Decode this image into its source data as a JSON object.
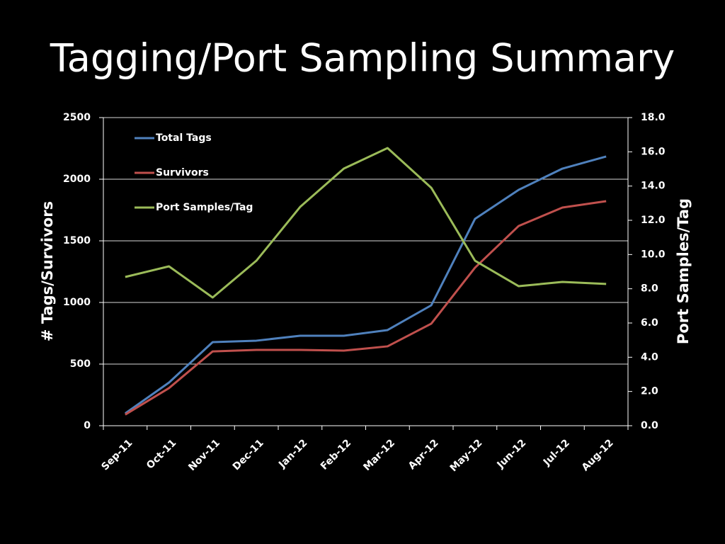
{
  "chart_data": {
    "type": "line",
    "title": "Tagging/Port Sampling Summary",
    "y_label": "# Tags/Survivors",
    "y2_label": "Port Samples/Tag",
    "categories": [
      "Sep-11",
      "Oct-11",
      "Nov-11",
      "Dec-11",
      "Jan-12",
      "Feb-12",
      "Mar-12",
      "Apr-12",
      "May-12",
      "Jun-12",
      "Jul-12",
      "Aug-12"
    ],
    "series": [
      {
        "name": "Total Tags",
        "color": "#4f81bd",
        "values": [
          100,
          350,
          678,
          690,
          730,
          730,
          776,
          977,
          1678,
          1914,
          2086,
          2184
        ]
      },
      {
        "name": "Survivors",
        "color": "#c0504d",
        "values": [
          90,
          305,
          603,
          615,
          615,
          609,
          644,
          828,
          1282,
          1621,
          1770,
          1822
        ]
      },
      {
        "name": "Port Samples/Tag",
        "color": "#9bbb59",
        "axis": "y2",
        "values": [
          8.69,
          9.31,
          7.49,
          9.64,
          12.78,
          15.02,
          16.22,
          13.9,
          9.64,
          8.15,
          8.4,
          8.28
        ]
      }
    ],
    "ylim": [
      0,
      2500
    ],
    "yticks": [
      0,
      500,
      1000,
      1500,
      2000,
      2500
    ],
    "y2lim": [
      0,
      18
    ],
    "y2ticks": [
      {
        "value": 0,
        "label": "0.0"
      },
      {
        "value": 2,
        "label": "2.0"
      },
      {
        "value": 4,
        "label": "4.0"
      },
      {
        "value": 6,
        "label": "6.0"
      },
      {
        "value": 8,
        "label": "8.0"
      },
      {
        "value": 10,
        "label": "10.0"
      },
      {
        "value": 12,
        "label": "12.0"
      },
      {
        "value": 14,
        "label": "14.0"
      },
      {
        "value": 16,
        "label": "16.0"
      },
      {
        "value": 18,
        "label": "18.0"
      }
    ],
    "grid": true,
    "legend": "top-left"
  }
}
